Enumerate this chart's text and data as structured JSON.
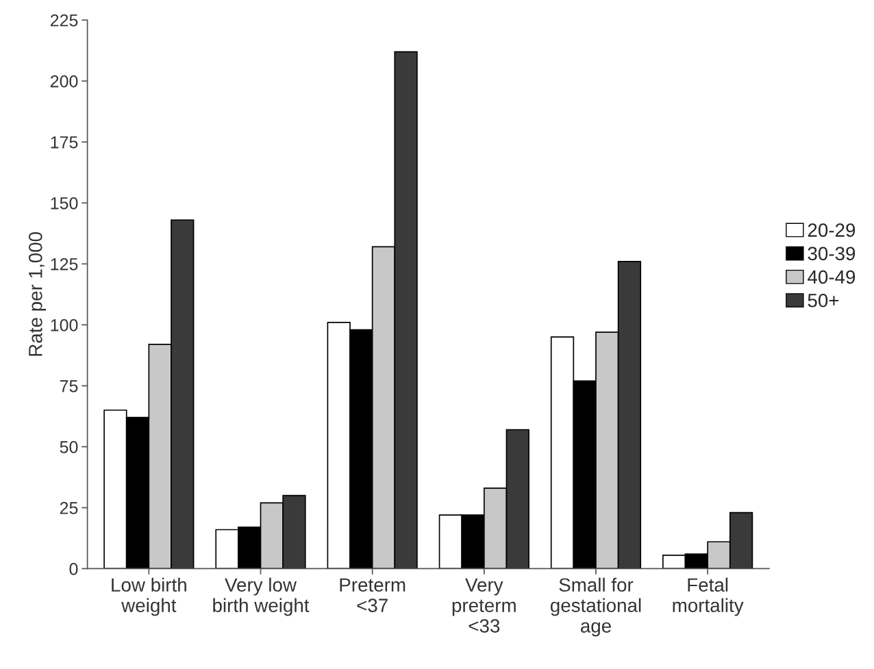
{
  "chart_data": {
    "type": "bar",
    "ylabel": "Rate per 1,000",
    "categories": [
      "Low birth\nweight",
      "Very low\nbirth weight",
      "Preterm\n<37",
      "Very\npreterm\n<33",
      "Small for\ngestational\nage",
      "Fetal\nmortality"
    ],
    "series": [
      {
        "name": "20-29",
        "color": "#ffffff",
        "values": [
          65,
          16,
          101,
          22,
          95,
          5.5
        ]
      },
      {
        "name": "30-39",
        "color": "#000000",
        "values": [
          62,
          17,
          98,
          22,
          77,
          6
        ]
      },
      {
        "name": "40-49",
        "color": "#c8c8c8",
        "values": [
          92,
          27,
          132,
          33,
          97,
          11
        ]
      },
      {
        "name": "50+",
        "color": "#3a3a3a",
        "values": [
          143,
          30,
          212,
          57,
          126,
          23
        ]
      }
    ],
    "ylim": [
      0,
      225
    ],
    "yticks": [
      0,
      25,
      50,
      75,
      100,
      125,
      150,
      175,
      200,
      225
    ],
    "grid": false,
    "legend": "right"
  }
}
